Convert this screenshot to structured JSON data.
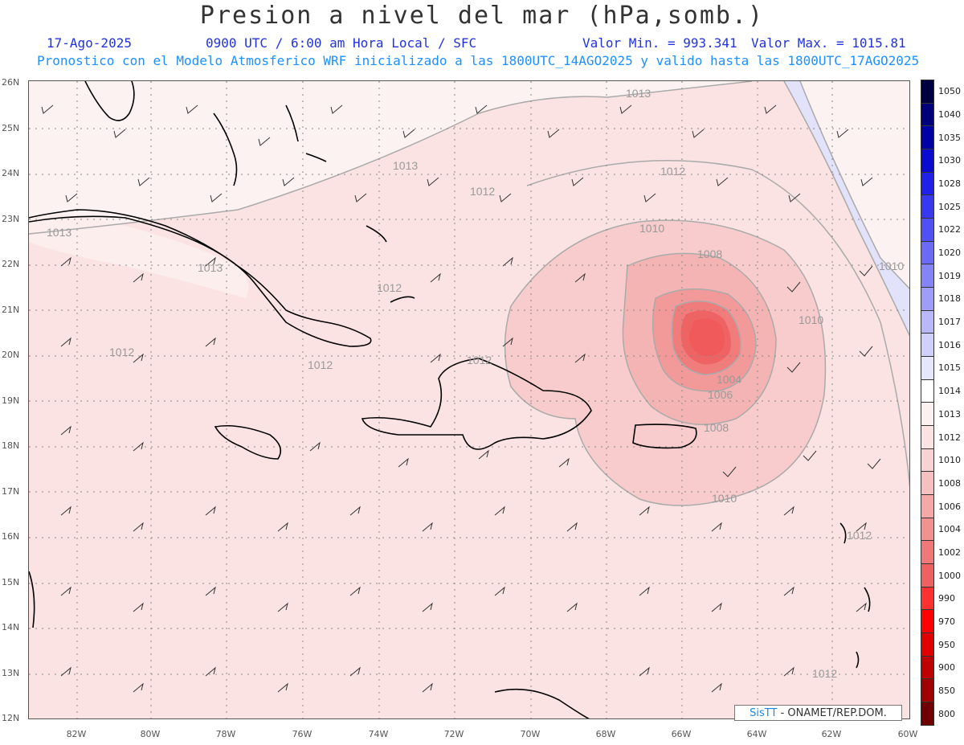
{
  "header": {
    "title": "Presion a nivel del mar (hPa,somb.)",
    "date": "17-Ago-2025",
    "time": "0900 UTC / 6:00 am Hora Local / SFC",
    "valmin": "Valor Min. = 993.341",
    "valmax": "Valor Max. = 1015.81",
    "model_line": "Pronostico con el Modelo Atmosferico WRF inicializado a las 1800UTC_14AGO2025 y valido hasta las  1800UTC_17AGO2025"
  },
  "axes": {
    "lat_labels": [
      "26N",
      "25N",
      "24N",
      "23N",
      "22N",
      "21N",
      "20N",
      "19N",
      "18N",
      "17N",
      "16N",
      "15N",
      "14N",
      "13N",
      "12N"
    ],
    "lon_labels": [
      "82W",
      "80W",
      "78W",
      "76W",
      "74W",
      "72W",
      "70W",
      "68W",
      "66W",
      "64W",
      "62W",
      "60W"
    ]
  },
  "colorbar": {
    "labels": [
      "1050",
      "1040",
      "1035",
      "1030",
      "1028",
      "1025",
      "1022",
      "1020",
      "1019",
      "1018",
      "1017",
      "1016",
      "1015",
      "1014",
      "1013",
      "1012",
      "1010",
      "1008",
      "1006",
      "1004",
      "1002",
      "1000",
      "990",
      "970",
      "950",
      "900",
      "850",
      "800"
    ],
    "colors": [
      "#000040",
      "#00007a",
      "#0000a8",
      "#0a0ad0",
      "#2020e8",
      "#3838f0",
      "#5050f4",
      "#6a6af6",
      "#8484f7",
      "#9e9ef9",
      "#b8b8fb",
      "#d0d0fc",
      "#e6e6fd",
      "#ffffff",
      "#fdf0f0",
      "#fbe3e3",
      "#f9d3d3",
      "#f7c0c0",
      "#f5a8a8",
      "#f39090",
      "#f17878",
      "#ef6060",
      "#ff3030",
      "#ff0000",
      "#e00000",
      "#c00000",
      "#a00000",
      "#700000"
    ]
  },
  "contour_labels": [
    {
      "text": "1013"
    },
    {
      "text": "1013"
    },
    {
      "text": "1013"
    },
    {
      "text": "1013"
    },
    {
      "text": "1012"
    },
    {
      "text": "1012"
    },
    {
      "text": "1012"
    },
    {
      "text": "1012"
    },
    {
      "text": "1012"
    },
    {
      "text": "1012"
    },
    {
      "text": "1012"
    },
    {
      "text": "1010"
    },
    {
      "text": "1010"
    },
    {
      "text": "1010"
    },
    {
      "text": "1010"
    },
    {
      "text": "1008"
    },
    {
      "text": "1008"
    },
    {
      "text": "1006"
    },
    {
      "text": "1004"
    },
    {
      "text": "1012"
    }
  ],
  "credit": {
    "sis": "SisTT",
    "rest": " - ONAMET/REP.DOM."
  }
}
